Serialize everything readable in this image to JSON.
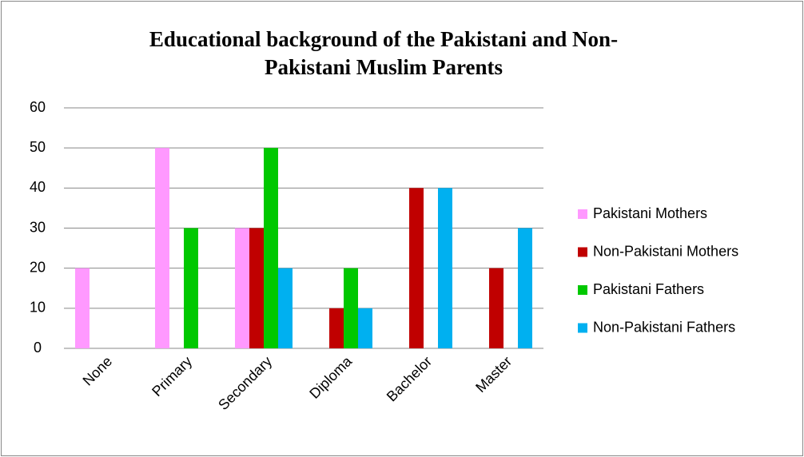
{
  "chart_data": {
    "type": "bar",
    "title": [
      "Educational background of the Pakistani and Non-",
      "Pakistani Muslim Parents"
    ],
    "categories": [
      "None",
      "Primary",
      "Secondary",
      "Diploma",
      "Bachelor",
      "Master"
    ],
    "series": [
      {
        "name": "Pakistani Mothers",
        "color": "#ff99ff",
        "values": [
          20,
          50,
          30,
          0,
          0,
          0
        ]
      },
      {
        "name": "Non-Pakistani Mothers",
        "color": "#c00000",
        "values": [
          0,
          0,
          30,
          10,
          40,
          20
        ]
      },
      {
        "name": "Pakistani Fathers",
        "color": "#00c800",
        "values": [
          0,
          30,
          50,
          20,
          0,
          0
        ]
      },
      {
        "name": "Non-Pakistani Fathers",
        "color": "#00b0f0",
        "values": [
          0,
          0,
          20,
          10,
          40,
          30
        ]
      }
    ],
    "ylim": [
      0,
      60
    ],
    "yticks": [
      0,
      10,
      20,
      30,
      40,
      50,
      60
    ],
    "grid": true,
    "legend": "right"
  }
}
